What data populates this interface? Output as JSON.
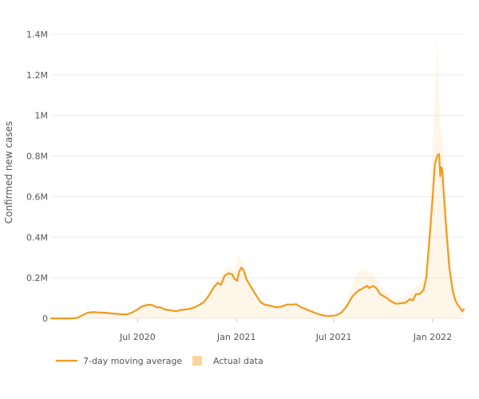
{
  "chart_data": {
    "type": "line",
    "title": "",
    "ylabel": "Confirmed new cases",
    "xlabel": "",
    "x_range": [
      "2020-01-22",
      "2022-02-28"
    ],
    "ylim": [
      0,
      1400000
    ],
    "grid": true,
    "legend_position": "bottom-left",
    "y_ticks": [
      {
        "value": 0,
        "label": "0"
      },
      {
        "value": 200000,
        "label": "0.2M"
      },
      {
        "value": 400000,
        "label": "0.4M"
      },
      {
        "value": 600000,
        "label": "0.6M"
      },
      {
        "value": 800000,
        "label": "0.8M"
      },
      {
        "value": 1000000,
        "label": "1M"
      },
      {
        "value": 1200000,
        "label": "1.2M"
      },
      {
        "value": 1400000,
        "label": "1.4M"
      }
    ],
    "x_ticks": [
      {
        "value": "2020-07-01",
        "label": "Jul 2020"
      },
      {
        "value": "2021-01-01",
        "label": "Jan 2021"
      },
      {
        "value": "2021-07-01",
        "label": "Jul 2021"
      },
      {
        "value": "2022-01-01",
        "label": "Jan 2022"
      }
    ],
    "series": [
      {
        "name": "7-day moving average",
        "kind": "line",
        "color": "#f29a1e",
        "points": [
          [
            "2020-01-22",
            0
          ],
          [
            "2020-03-01",
            0
          ],
          [
            "2020-03-10",
            2000
          ],
          [
            "2020-03-20",
            15000
          ],
          [
            "2020-03-30",
            28000
          ],
          [
            "2020-04-10",
            31000
          ],
          [
            "2020-04-20",
            29000
          ],
          [
            "2020-05-01",
            28000
          ],
          [
            "2020-05-15",
            24000
          ],
          [
            "2020-06-01",
            20000
          ],
          [
            "2020-06-10",
            20000
          ],
          [
            "2020-06-20",
            28000
          ],
          [
            "2020-07-01",
            45000
          ],
          [
            "2020-07-10",
            60000
          ],
          [
            "2020-07-20",
            67000
          ],
          [
            "2020-07-28",
            66000
          ],
          [
            "2020-08-05",
            55000
          ],
          [
            "2020-08-12",
            55000
          ],
          [
            "2020-08-20",
            45000
          ],
          [
            "2020-09-01",
            40000
          ],
          [
            "2020-09-10",
            35000
          ],
          [
            "2020-09-20",
            42000
          ],
          [
            "2020-10-01",
            45000
          ],
          [
            "2020-10-10",
            50000
          ],
          [
            "2020-10-20",
            60000
          ],
          [
            "2020-11-01",
            80000
          ],
          [
            "2020-11-10",
            110000
          ],
          [
            "2020-11-20",
            155000
          ],
          [
            "2020-11-27",
            175000
          ],
          [
            "2020-12-03",
            165000
          ],
          [
            "2020-12-10",
            210000
          ],
          [
            "2020-12-17",
            222000
          ],
          [
            "2020-12-24",
            218000
          ],
          [
            "2020-12-28",
            195000
          ],
          [
            "2021-01-02",
            185000
          ],
          [
            "2021-01-06",
            230000
          ],
          [
            "2021-01-10",
            250000
          ],
          [
            "2021-01-14",
            240000
          ],
          [
            "2021-01-20",
            190000
          ],
          [
            "2021-01-27",
            160000
          ],
          [
            "2021-02-05",
            120000
          ],
          [
            "2021-02-15",
            80000
          ],
          [
            "2021-02-22",
            68000
          ],
          [
            "2021-03-01",
            65000
          ],
          [
            "2021-03-15",
            55000
          ],
          [
            "2021-03-25",
            58000
          ],
          [
            "2021-04-05",
            68000
          ],
          [
            "2021-04-15",
            68000
          ],
          [
            "2021-04-22",
            70000
          ],
          [
            "2021-05-01",
            55000
          ],
          [
            "2021-05-15",
            40000
          ],
          [
            "2021-06-01",
            22000
          ],
          [
            "2021-06-15",
            13000
          ],
          [
            "2021-06-25",
            12000
          ],
          [
            "2021-07-05",
            15000
          ],
          [
            "2021-07-15",
            28000
          ],
          [
            "2021-07-25",
            60000
          ],
          [
            "2021-08-05",
            110000
          ],
          [
            "2021-08-15",
            135000
          ],
          [
            "2021-08-25",
            150000
          ],
          [
            "2021-09-01",
            160000
          ],
          [
            "2021-09-05",
            150000
          ],
          [
            "2021-09-12",
            160000
          ],
          [
            "2021-09-18",
            150000
          ],
          [
            "2021-09-25",
            120000
          ],
          [
            "2021-10-05",
            105000
          ],
          [
            "2021-10-15",
            85000
          ],
          [
            "2021-10-25",
            72000
          ],
          [
            "2021-11-05",
            75000
          ],
          [
            "2021-11-12",
            78000
          ],
          [
            "2021-11-20",
            95000
          ],
          [
            "2021-11-25",
            88000
          ],
          [
            "2021-12-01",
            120000
          ],
          [
            "2021-12-08",
            120000
          ],
          [
            "2021-12-15",
            140000
          ],
          [
            "2021-12-20",
            200000
          ],
          [
            "2021-12-27",
            420000
          ],
          [
            "2022-01-01",
            600000
          ],
          [
            "2022-01-05",
            760000
          ],
          [
            "2022-01-10",
            805000
          ],
          [
            "2022-01-13",
            810000
          ],
          [
            "2022-01-15",
            700000
          ],
          [
            "2022-01-17",
            745000
          ],
          [
            "2022-01-19",
            730000
          ],
          [
            "2022-01-21",
            640000
          ],
          [
            "2022-01-26",
            450000
          ],
          [
            "2022-02-01",
            250000
          ],
          [
            "2022-02-07",
            140000
          ],
          [
            "2022-02-12",
            90000
          ],
          [
            "2022-02-17",
            65000
          ],
          [
            "2022-02-22",
            48000
          ],
          [
            "2022-02-25",
            35000
          ],
          [
            "2022-02-28",
            45000
          ]
        ]
      },
      {
        "name": "Actual data",
        "kind": "area",
        "color": "#fbd59b",
        "points": [
          [
            "2020-01-22",
            0
          ],
          [
            "2020-03-01",
            0
          ],
          [
            "2020-03-10",
            2000
          ],
          [
            "2020-03-20",
            15000
          ],
          [
            "2020-03-30",
            32000
          ],
          [
            "2020-04-10",
            36000
          ],
          [
            "2020-04-20",
            30000
          ],
          [
            "2020-05-01",
            30000
          ],
          [
            "2020-05-15",
            26000
          ],
          [
            "2020-06-01",
            22000
          ],
          [
            "2020-06-10",
            22000
          ],
          [
            "2020-06-20",
            30000
          ],
          [
            "2020-07-01",
            50000
          ],
          [
            "2020-07-10",
            65000
          ],
          [
            "2020-07-20",
            75000
          ],
          [
            "2020-07-28",
            70000
          ],
          [
            "2020-08-05",
            60000
          ],
          [
            "2020-08-12",
            58000
          ],
          [
            "2020-08-20",
            48000
          ],
          [
            "2020-09-01",
            42000
          ],
          [
            "2020-09-10",
            38000
          ],
          [
            "2020-09-20",
            45000
          ],
          [
            "2020-10-01",
            48000
          ],
          [
            "2020-10-10",
            55000
          ],
          [
            "2020-10-20",
            65000
          ],
          [
            "2020-11-01",
            90000
          ],
          [
            "2020-11-10",
            125000
          ],
          [
            "2020-11-20",
            175000
          ],
          [
            "2020-11-27",
            195000
          ],
          [
            "2020-12-03",
            200000
          ],
          [
            "2020-12-10",
            240000
          ],
          [
            "2020-12-17",
            255000
          ],
          [
            "2020-12-24",
            245000
          ],
          [
            "2020-12-28",
            225000
          ],
          [
            "2021-01-02",
            300000
          ],
          [
            "2021-01-06",
            310000
          ],
          [
            "2021-01-10",
            290000
          ],
          [
            "2021-01-14",
            270000
          ],
          [
            "2021-01-20",
            210000
          ],
          [
            "2021-01-27",
            175000
          ],
          [
            "2021-02-05",
            130000
          ],
          [
            "2021-02-15",
            90000
          ],
          [
            "2021-02-22",
            75000
          ],
          [
            "2021-03-01",
            72000
          ],
          [
            "2021-03-15",
            60000
          ],
          [
            "2021-03-25",
            65000
          ],
          [
            "2021-04-05",
            75000
          ],
          [
            "2021-04-15",
            75000
          ],
          [
            "2021-04-22",
            78000
          ],
          [
            "2021-05-01",
            60000
          ],
          [
            "2021-05-15",
            45000
          ],
          [
            "2021-06-01",
            25000
          ],
          [
            "2021-06-15",
            15000
          ],
          [
            "2021-06-25",
            14000
          ],
          [
            "2021-07-05",
            18000
          ],
          [
            "2021-07-15",
            35000
          ],
          [
            "2021-07-25",
            70000
          ],
          [
            "2021-08-05",
            170000
          ],
          [
            "2021-08-15",
            230000
          ],
          [
            "2021-08-25",
            240000
          ],
          [
            "2021-09-01",
            245000
          ],
          [
            "2021-09-05",
            220000
          ],
          [
            "2021-09-12",
            230000
          ],
          [
            "2021-09-18",
            200000
          ],
          [
            "2021-09-25",
            160000
          ],
          [
            "2021-10-05",
            135000
          ],
          [
            "2021-10-15",
            110000
          ],
          [
            "2021-10-25",
            90000
          ],
          [
            "2021-11-05",
            100000
          ],
          [
            "2021-11-12",
            110000
          ],
          [
            "2021-11-20",
            140000
          ],
          [
            "2021-11-25",
            130000
          ],
          [
            "2021-12-01",
            160000
          ],
          [
            "2021-12-08",
            170000
          ],
          [
            "2021-12-15",
            190000
          ],
          [
            "2021-12-20",
            280000
          ],
          [
            "2021-12-27",
            600000
          ],
          [
            "2022-01-01",
            850000
          ],
          [
            "2022-01-05",
            1050000
          ],
          [
            "2022-01-10",
            1380000
          ],
          [
            "2022-01-13",
            1100000
          ],
          [
            "2022-01-15",
            950000
          ],
          [
            "2022-01-17",
            900000
          ],
          [
            "2022-01-19",
            920000
          ],
          [
            "2022-01-21",
            800000
          ],
          [
            "2022-01-26",
            600000
          ],
          [
            "2022-02-01",
            380000
          ],
          [
            "2022-02-07",
            220000
          ],
          [
            "2022-02-12",
            140000
          ],
          [
            "2022-02-17",
            95000
          ],
          [
            "2022-02-22",
            70000
          ],
          [
            "2022-02-25",
            50000
          ],
          [
            "2022-02-28",
            55000
          ]
        ]
      }
    ]
  }
}
